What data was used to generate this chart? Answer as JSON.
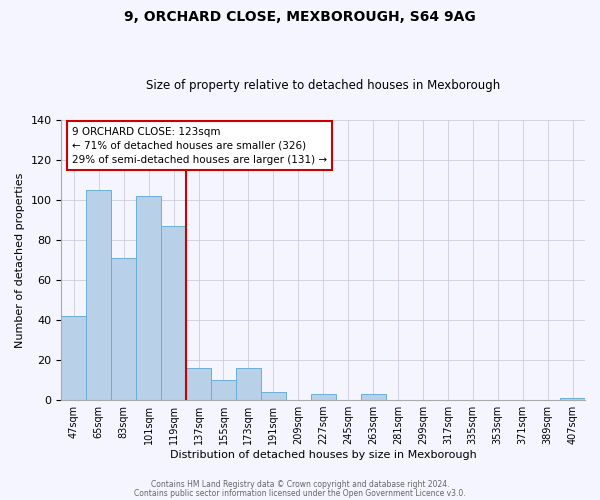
{
  "title": "9, ORCHARD CLOSE, MEXBOROUGH, S64 9AG",
  "subtitle": "Size of property relative to detached houses in Mexborough",
  "xlabel": "Distribution of detached houses by size in Mexborough",
  "ylabel": "Number of detached properties",
  "bin_labels": [
    "47sqm",
    "65sqm",
    "83sqm",
    "101sqm",
    "119sqm",
    "137sqm",
    "155sqm",
    "173sqm",
    "191sqm",
    "209sqm",
    "227sqm",
    "245sqm",
    "263sqm",
    "281sqm",
    "299sqm",
    "317sqm",
    "335sqm",
    "353sqm",
    "371sqm",
    "389sqm",
    "407sqm"
  ],
  "bar_values": [
    42,
    105,
    71,
    102,
    87,
    16,
    10,
    16,
    4,
    0,
    3,
    0,
    3,
    0,
    0,
    0,
    0,
    0,
    0,
    0,
    1
  ],
  "bar_color": "#b8d0e8",
  "bar_edge_color": "#6aaed6",
  "vline_index": 4.5,
  "ylim": [
    0,
    140
  ],
  "yticks": [
    0,
    20,
    40,
    60,
    80,
    100,
    120,
    140
  ],
  "annotation_title": "9 ORCHARD CLOSE: 123sqm",
  "annotation_line1": "← 71% of detached houses are smaller (326)",
  "annotation_line2": "29% of semi-detached houses are larger (131) →",
  "footer1": "Contains HM Land Registry data © Crown copyright and database right 2024.",
  "footer2": "Contains public sector information licensed under the Open Government Licence v3.0.",
  "background_color": "#f5f5ff",
  "annotation_box_color": "#ffffff",
  "annotation_box_edge": "#cc0000",
  "vline_color": "#cc0000",
  "title_fontsize": 10,
  "subtitle_fontsize": 8.5,
  "ylabel_fontsize": 8,
  "xlabel_fontsize": 8
}
